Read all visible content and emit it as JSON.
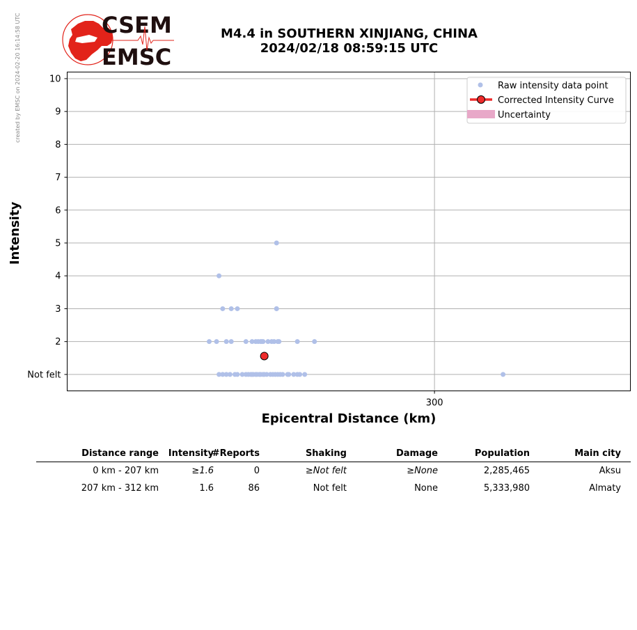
{
  "watermark": "created by EMSC on 2024-02-20 16:14:58 UTC",
  "logo": {
    "top": "CSEM",
    "bottom": "EMSC",
    "color": "#e2231a"
  },
  "title": {
    "line1": "M4.4 in SOUTHERN XINJIANG, CHINA",
    "line2": "2024/02/18 08:59:15 UTC"
  },
  "chart_data": {
    "type": "scatter",
    "xlabel": "Epicentral Distance (km)",
    "ylabel": "Intensity",
    "xlim": [
      0,
      460
    ],
    "ylim": [
      0.5,
      10.2
    ],
    "xticks": [
      {
        "value": 300,
        "label": "300"
      }
    ],
    "yticks": [
      {
        "value": 1,
        "label": "Not felt"
      },
      {
        "value": 2,
        "label": "2"
      },
      {
        "value": 3,
        "label": "3"
      },
      {
        "value": 4,
        "label": "4"
      },
      {
        "value": 5,
        "label": "5"
      },
      {
        "value": 6,
        "label": "6"
      },
      {
        "value": 7,
        "label": "7"
      },
      {
        "value": 8,
        "label": "8"
      },
      {
        "value": 9,
        "label": "9"
      },
      {
        "value": 10,
        "label": "10"
      }
    ],
    "grid": true,
    "legend": {
      "position": "top-right",
      "entries": [
        "Raw intensity data point",
        "Corrected Intensity Curve",
        "Uncertainty"
      ]
    },
    "colors": {
      "raw": "#b0c0e8",
      "corrected": "#ee2b2b",
      "uncertainty": "#e8a8c8"
    },
    "series": [
      {
        "name": "Raw intensity data point",
        "points": [
          [
            171,
            5
          ],
          [
            124,
            4
          ],
          [
            127,
            3
          ],
          [
            134,
            3
          ],
          [
            139,
            3
          ],
          [
            171,
            3
          ],
          [
            171,
            3
          ],
          [
            116,
            2
          ],
          [
            122,
            2
          ],
          [
            130,
            2
          ],
          [
            134,
            2
          ],
          [
            146,
            2
          ],
          [
            151,
            2
          ],
          [
            154,
            2
          ],
          [
            156,
            2
          ],
          [
            158,
            2
          ],
          [
            159,
            2
          ],
          [
            160,
            2
          ],
          [
            164,
            2
          ],
          [
            167,
            2
          ],
          [
            169,
            2
          ],
          [
            172,
            2
          ],
          [
            173,
            2
          ],
          [
            188,
            2
          ],
          [
            202,
            2
          ],
          [
            124,
            1
          ],
          [
            127,
            1
          ],
          [
            130,
            1
          ],
          [
            133,
            1
          ],
          [
            137,
            1
          ],
          [
            139,
            1
          ],
          [
            143,
            1
          ],
          [
            146,
            1
          ],
          [
            148,
            1
          ],
          [
            150,
            1
          ],
          [
            151,
            1
          ],
          [
            152,
            1
          ],
          [
            154,
            1
          ],
          [
            155,
            1
          ],
          [
            157,
            1
          ],
          [
            158,
            1
          ],
          [
            160,
            1
          ],
          [
            161,
            1
          ],
          [
            163,
            1
          ],
          [
            166,
            1
          ],
          [
            168,
            1
          ],
          [
            170,
            1
          ],
          [
            172,
            1
          ],
          [
            174,
            1
          ],
          [
            176,
            1
          ],
          [
            180,
            1
          ],
          [
            181,
            1
          ],
          [
            185,
            1
          ],
          [
            188,
            1
          ],
          [
            190,
            1
          ],
          [
            194,
            1
          ],
          [
            356,
            1
          ]
        ]
      },
      {
        "name": "Corrected Intensity Curve",
        "points": [
          [
            161,
            1.56
          ]
        ]
      }
    ]
  },
  "table": {
    "headers": [
      "Distance range",
      "Intensity",
      "#Reports",
      "Shaking",
      "Damage",
      "Population",
      "Main city"
    ],
    "rows": [
      [
        "0 km -  207 km",
        "≥1.6",
        "0",
        "≥Not felt",
        "≥None",
        "2,285,465",
        "Aksu"
      ],
      [
        "207 km -  312 km",
        "1.6",
        "86",
        "Not felt",
        "None",
        "5,333,980",
        "Almaty"
      ]
    ]
  }
}
